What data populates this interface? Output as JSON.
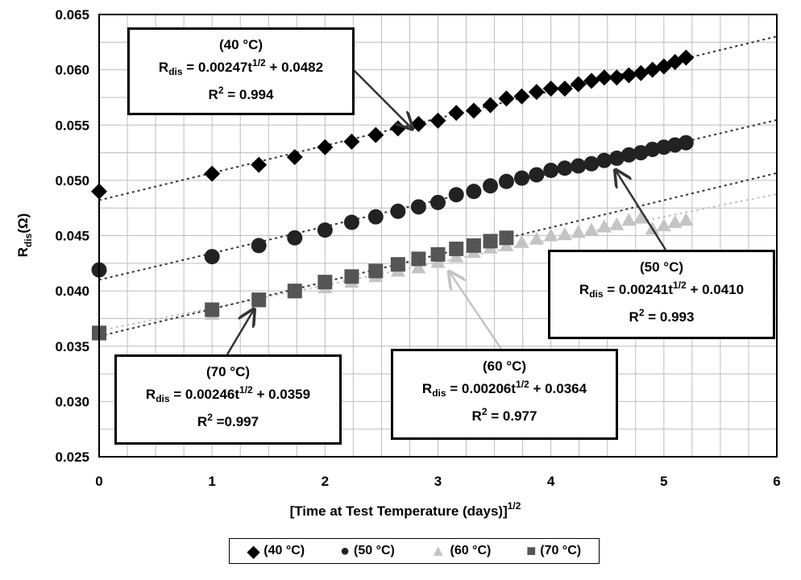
{
  "chart_data": {
    "type": "scatter",
    "xlabel": "[Time at Test Temperature (days)]",
    "xlabel_sup": "1/2",
    "ylabel": "R",
    "ylabel_sub": "dis",
    "ylabel_unit": "(Ω)",
    "xlim": [
      0,
      6
    ],
    "ylim": [
      0.025,
      0.065
    ],
    "x_ticks": [
      "0",
      "1",
      "2",
      "3",
      "4",
      "5",
      "6"
    ],
    "y_ticks": [
      "0.025",
      "0.030",
      "0.035",
      "0.040",
      "0.045",
      "0.050",
      "0.055",
      "0.060",
      "0.065"
    ],
    "grid": true,
    "legend_position": "bottom",
    "series": [
      {
        "name": "(40 °C)",
        "marker": "diamond",
        "color": "#000000",
        "x": [
          0,
          1,
          1.414,
          1.732,
          2,
          2.236,
          2.449,
          2.646,
          2.828,
          3,
          3.162,
          3.317,
          3.464,
          3.606,
          3.742,
          3.873,
          4,
          4.123,
          4.243,
          4.359,
          4.472,
          4.583,
          4.69,
          4.796,
          4.899,
          5,
          5.099,
          5.196
        ],
        "y": [
          0.049,
          0.0506,
          0.0514,
          0.0521,
          0.053,
          0.0535,
          0.0541,
          0.0547,
          0.0551,
          0.0554,
          0.0561,
          0.0563,
          0.0568,
          0.0574,
          0.0576,
          0.058,
          0.0583,
          0.0583,
          0.0587,
          0.059,
          0.0593,
          0.0593,
          0.0595,
          0.0597,
          0.06,
          0.0603,
          0.0607,
          0.0611
        ],
        "fit": {
          "slope": 0.00247,
          "intercept": 0.0482
        }
      },
      {
        "name": "(50 °C)",
        "marker": "circle",
        "color": "#222222",
        "x": [
          0,
          1,
          1.414,
          1.732,
          2,
          2.236,
          2.449,
          2.646,
          2.828,
          3,
          3.162,
          3.317,
          3.464,
          3.606,
          3.742,
          3.873,
          4,
          4.123,
          4.243,
          4.359,
          4.472,
          4.583,
          4.69,
          4.796,
          4.899,
          5,
          5.099,
          5.196
        ],
        "y": [
          0.0419,
          0.0431,
          0.0441,
          0.0448,
          0.0455,
          0.0462,
          0.0467,
          0.0472,
          0.0476,
          0.048,
          0.0487,
          0.049,
          0.0495,
          0.0499,
          0.0502,
          0.0505,
          0.0509,
          0.0511,
          0.0513,
          0.0515,
          0.0518,
          0.052,
          0.0523,
          0.0525,
          0.0528,
          0.053,
          0.0532,
          0.0534
        ],
        "fit": {
          "slope": 0.00241,
          "intercept": 0.041
        }
      },
      {
        "name": "(60 °C)",
        "marker": "triangle",
        "color": "#c4c4c4",
        "x": [
          0,
          1,
          1.414,
          1.732,
          2,
          2.236,
          2.449,
          2.646,
          2.828,
          3,
          3.162,
          3.317,
          3.464,
          3.606,
          3.742,
          3.873,
          4,
          4.123,
          4.243,
          4.359,
          4.472,
          4.583,
          4.69,
          4.796,
          4.899,
          5,
          5.099,
          5.196
        ],
        "y": [
          0.036,
          0.0379,
          0.039,
          0.0398,
          0.0403,
          0.0408,
          0.0413,
          0.0418,
          0.0421,
          0.0426,
          0.0431,
          0.0435,
          0.0439,
          0.0441,
          0.0444,
          0.0447,
          0.045,
          0.0451,
          0.0453,
          0.0455,
          0.0458,
          0.046,
          0.0464,
          0.0466,
          0.0456,
          0.0459,
          0.0462,
          0.0464
        ],
        "fit": {
          "slope": 0.00206,
          "intercept": 0.0364
        }
      },
      {
        "name": "(70 °C)",
        "marker": "square",
        "color": "#555555",
        "x": [
          0,
          1,
          1.414,
          1.732,
          2,
          2.236,
          2.449,
          2.646,
          2.828,
          3,
          3.162,
          3.317,
          3.464,
          3.606
        ],
        "y": [
          0.0362,
          0.0383,
          0.0392,
          0.04,
          0.0408,
          0.0413,
          0.0418,
          0.0424,
          0.0429,
          0.0433,
          0.0438,
          0.0441,
          0.0445,
          0.0448
        ],
        "fit": {
          "slope": 0.00246,
          "intercept": 0.0359
        }
      }
    ],
    "annotations": [
      {
        "id": "40",
        "temp": "(40 °C)",
        "R": "R",
        "R_sub": "dis",
        "eq_a": " = 0.00247t",
        "eq_sup": "1/2",
        "eq_b": " + 0.0482",
        "r2_a": "R",
        "r2_sup": "2",
        "r2_b": " = 0.994"
      },
      {
        "id": "50",
        "temp": "(50 °C)",
        "R": "R",
        "R_sub": "dis",
        "eq_a": " = 0.00241t",
        "eq_sup": "1/2",
        "eq_b": " + 0.0410",
        "r2_a": "R",
        "r2_sup": "2",
        "r2_b": " = 0.993"
      },
      {
        "id": "60",
        "temp": "(60 °C)",
        "R": "R",
        "R_sub": "dis",
        "eq_a": " = 0.00206t",
        "eq_sup": "1/2",
        "eq_b": " + 0.0364",
        "r2_a": "R",
        "r2_sup": "2",
        "r2_b": " = 0.977"
      },
      {
        "id": "70",
        "temp": "(70 °C)",
        "R": "R",
        "R_sub": "dis",
        "eq_a": " = 0.00246t",
        "eq_sup": "1/2",
        "eq_b": " + 0.0359",
        "r2_a": "R",
        "r2_sup": "2",
        "r2_b": " =0.997"
      }
    ],
    "legend": [
      {
        "symbol": "◆",
        "label": "(40 °C)",
        "color": "#000000"
      },
      {
        "symbol": "●",
        "label": "(50 °C)",
        "color": "#222222"
      },
      {
        "symbol": "▲",
        "label": "(60 °C)",
        "color": "#c4c4c4"
      },
      {
        "symbol": "■",
        "label": "(70 °C)",
        "color": "#555555"
      }
    ]
  }
}
